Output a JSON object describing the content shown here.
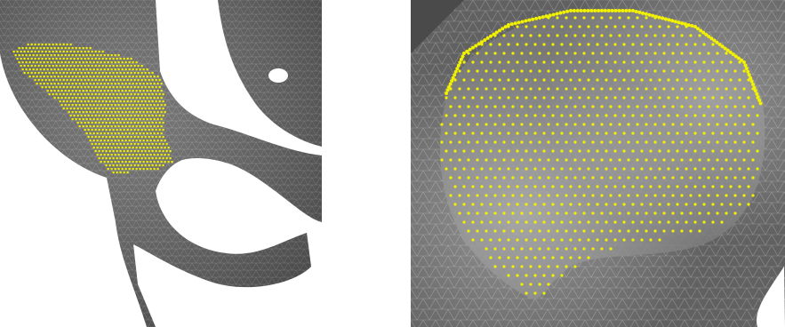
{
  "figure": {
    "panels": [
      {
        "id": "left",
        "description_icon": "bone-mesh-overview",
        "mesh_color": "#5b5b5b",
        "wire_color": "#8a8a8a",
        "point_color": "#f2f200"
      },
      {
        "id": "right",
        "description_icon": "bone-mesh-closeup",
        "mesh_color": "#6b6b6b",
        "wire_color": "#9a9a9a",
        "point_color": "#f2f200"
      }
    ]
  }
}
